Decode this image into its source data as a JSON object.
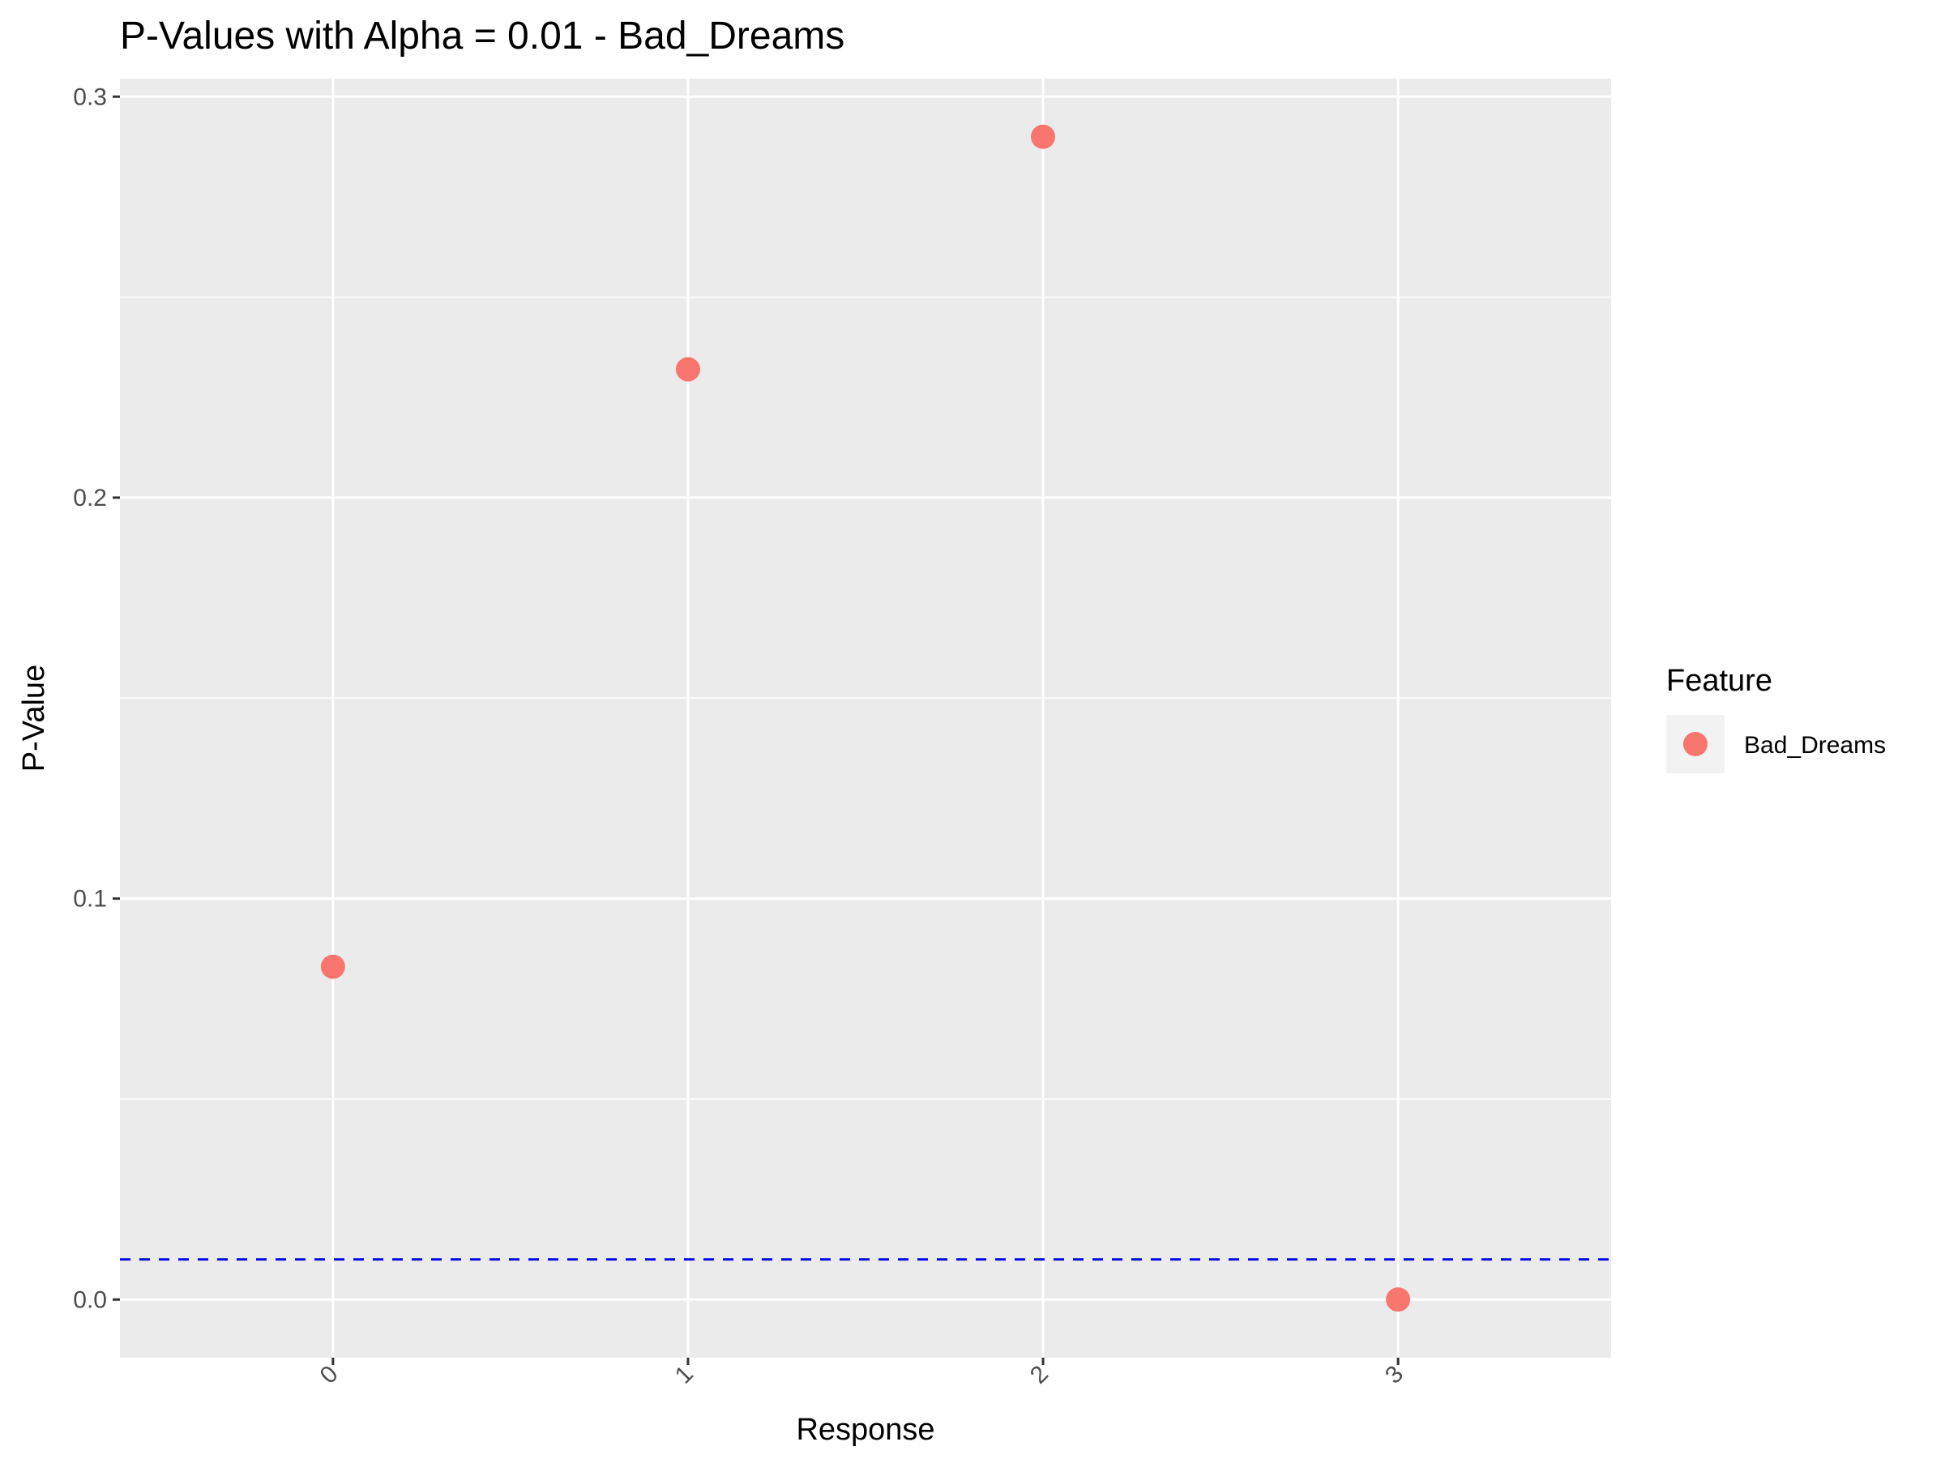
{
  "chart_data": {
    "type": "scatter",
    "title": "P-Values with Alpha = 0.01 - Bad_Dreams",
    "xlabel": "Response",
    "ylabel": "P-Value",
    "x_categories": [
      "0",
      "1",
      "2",
      "3"
    ],
    "series": [
      {
        "name": "Bad_Dreams",
        "color": "#F8766D",
        "points": [
          {
            "x": "0",
            "y": 0.083
          },
          {
            "x": "1",
            "y": 0.232
          },
          {
            "x": "2",
            "y": 0.29
          },
          {
            "x": "3",
            "y": 0.0
          }
        ]
      }
    ],
    "y_ticks": [
      0.0,
      0.1,
      0.2,
      0.3
    ],
    "y_tick_labels": [
      "0.0",
      "0.1",
      "0.2",
      "0.3"
    ],
    "ylim": [
      -0.0145,
      0.3045
    ],
    "threshold": {
      "value": 0.01,
      "color": "#0000FF",
      "style": "dashed"
    },
    "grid": true,
    "panel_background": "#EBEBEB",
    "legend": {
      "title": "Feature",
      "position": "right",
      "entries": [
        "Bad_Dreams"
      ]
    }
  }
}
